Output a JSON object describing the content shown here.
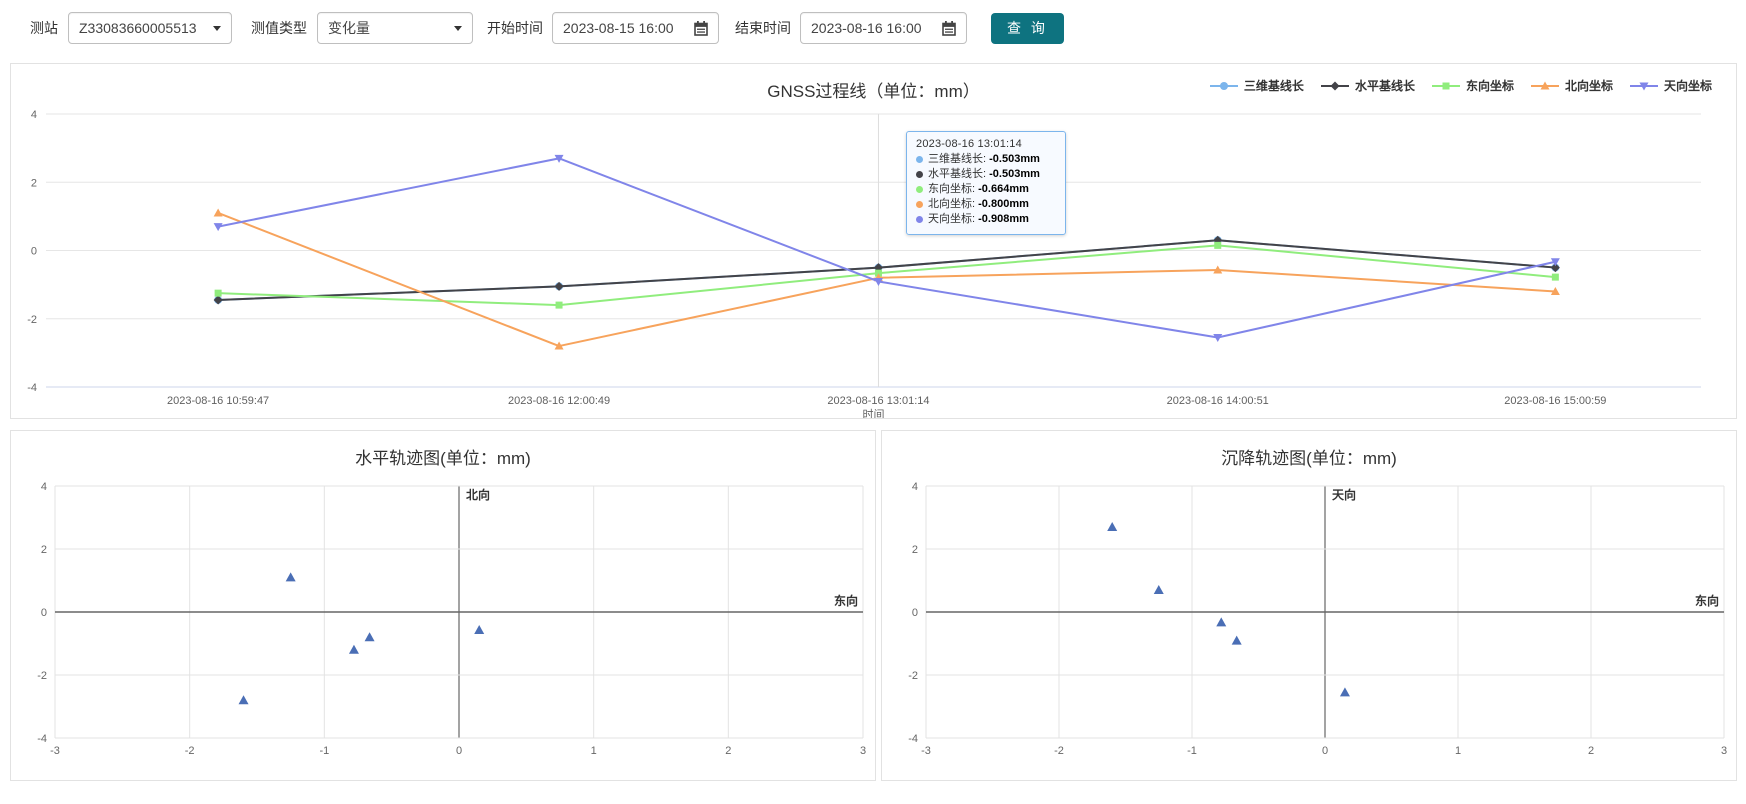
{
  "toolbar": {
    "station_label": "测站",
    "station_value": "Z33083660005513",
    "type_label": "测值类型",
    "type_value": "变化量",
    "start_label": "开始时间",
    "start_value": "2023-08-15 16:00",
    "end_label": "结束时间",
    "end_value": "2023-08-16 16:00",
    "query_label": "查 询",
    "query_color": "#0e7380"
  },
  "tooltip": {
    "header": "2023-08-16 13:01:14",
    "rows": [
      {
        "label": "三维基线长",
        "value": "-0.503mm",
        "color": "#7cb5ec"
      },
      {
        "label": "水平基线长",
        "value": "-0.503mm",
        "color": "#434348"
      },
      {
        "label": "东向坐标",
        "value": "-0.664mm",
        "color": "#90ed7d"
      },
      {
        "label": "北向坐标",
        "value": "-0.800mm",
        "color": "#f7a35c"
      },
      {
        "label": "天向坐标",
        "value": "-0.908mm",
        "color": "#8085e9"
      }
    ]
  },
  "chart_data": [
    {
      "type": "line",
      "title": "GNSS过程线（单位：mm）",
      "xlabel": "时间",
      "ylim": [
        -4,
        4
      ],
      "yticks": [
        4,
        2,
        0,
        -2,
        -4
      ],
      "grid": true,
      "legend_position": "top-right",
      "categories": [
        "2023-08-16 10:59:47",
        "2023-08-16 12:00:49",
        "2023-08-16 13:01:14",
        "2023-08-16 14:00:51",
        "2023-08-16 15:00:59"
      ],
      "hover_index": 2,
      "series": [
        {
          "name": "三维基线长",
          "color": "#7cb5ec",
          "marker": "circle",
          "values": [
            -1.45,
            -1.05,
            -0.503,
            0.3,
            -0.5
          ]
        },
        {
          "name": "水平基线长",
          "color": "#434348",
          "marker": "diamond",
          "values": [
            -1.45,
            -1.05,
            -0.503,
            0.3,
            -0.5
          ]
        },
        {
          "name": "东向坐标",
          "color": "#90ed7d",
          "marker": "square",
          "values": [
            -1.25,
            -1.6,
            -0.664,
            0.15,
            -0.78
          ]
        },
        {
          "name": "北向坐标",
          "color": "#f7a35c",
          "marker": "triangle",
          "values": [
            1.1,
            -2.8,
            -0.8,
            -0.57,
            -1.2
          ]
        },
        {
          "name": "天向坐标",
          "color": "#8085e9",
          "marker": "triangle-down",
          "values": [
            0.7,
            2.7,
            -0.908,
            -2.55,
            -0.33
          ]
        }
      ]
    },
    {
      "type": "scatter",
      "title": "水平轨迹图(单位：mm)",
      "x_axis_name": "东向",
      "y_axis_name": "北向",
      "xlim": [
        -3,
        3
      ],
      "ylim": [
        -4,
        4
      ],
      "xticks": [
        -3,
        -2,
        -1,
        0,
        1,
        2,
        3
      ],
      "yticks": [
        4,
        2,
        0,
        -2,
        -4
      ],
      "marker": "triangle",
      "color": "#4a6eb5",
      "points": [
        [
          -1.25,
          1.1
        ],
        [
          -1.6,
          -2.8
        ],
        [
          -0.664,
          -0.8
        ],
        [
          0.15,
          -0.57
        ],
        [
          -0.78,
          -1.2
        ]
      ]
    },
    {
      "type": "scatter",
      "title": "沉降轨迹图(单位：mm)",
      "x_axis_name": "东向",
      "y_axis_name": "天向",
      "xlim": [
        -3,
        3
      ],
      "ylim": [
        -4,
        4
      ],
      "xticks": [
        -3,
        -2,
        -1,
        0,
        1,
        2,
        3
      ],
      "yticks": [
        4,
        2,
        0,
        -2,
        -4
      ],
      "marker": "triangle",
      "color": "#4a6eb5",
      "points": [
        [
          -1.25,
          0.7
        ],
        [
          -1.6,
          2.7
        ],
        [
          -0.664,
          -0.908
        ],
        [
          0.15,
          -2.55
        ],
        [
          -0.78,
          -0.33
        ]
      ]
    }
  ],
  "colors": {
    "accent": "#0e7380",
    "series": [
      "#7cb5ec",
      "#434348",
      "#90ed7d",
      "#f7a35c",
      "#8085e9"
    ],
    "scatter_point": "#4a6eb5",
    "grid": "#e6e6e6"
  }
}
